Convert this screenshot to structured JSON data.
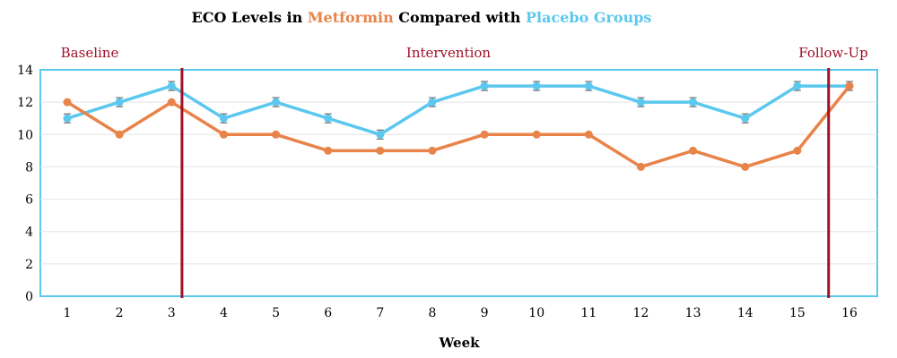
{
  "chart_data": {
    "type": "line",
    "title_parts": [
      {
        "text": "ECO Levels in ",
        "color": "#000000"
      },
      {
        "text": "Metformin",
        "color": "#E8834A"
      },
      {
        "text": " Compared with ",
        "color": "#000000"
      },
      {
        "text": "Placebo Groups",
        "color": "#5BC8EE"
      }
    ],
    "xlabel": "Week",
    "ylabel": "",
    "x": [
      1,
      2,
      3,
      4,
      5,
      6,
      7,
      8,
      9,
      10,
      11,
      12,
      13,
      14,
      15,
      16
    ],
    "ylim": [
      0,
      14
    ],
    "yticks": [
      0,
      2,
      4,
      6,
      8,
      10,
      12,
      14
    ],
    "grid": true,
    "series": [
      {
        "name": "Placebo Groups",
        "color": "#5BC8EE",
        "values": [
          11,
          12,
          13,
          11,
          12,
          11,
          10,
          12,
          13,
          13,
          13,
          12,
          12,
          11,
          13,
          13
        ],
        "error_bars": true
      },
      {
        "name": "Metformin",
        "color": "#E8834A",
        "values": [
          12,
          10,
          12,
          10,
          10,
          9,
          9,
          9,
          10,
          10,
          10,
          8,
          9,
          8,
          9,
          13
        ],
        "error_bars": false
      }
    ],
    "phase_lines": [
      {
        "at_week": 3.2,
        "color": "#A01127"
      },
      {
        "at_week": 15.6,
        "color": "#A01127"
      }
    ],
    "phase_labels": [
      {
        "text": "Baseline",
        "color": "#A01127"
      },
      {
        "text": "Intervention",
        "color": "#A01127"
      },
      {
        "text": "Follow-Up",
        "color": "#A01127"
      }
    ]
  }
}
